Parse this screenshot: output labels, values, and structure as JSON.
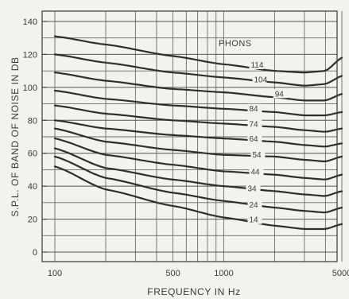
{
  "chart_data": {
    "type": "line",
    "title": "",
    "xlabel": "FREQUENCY IN Hz",
    "ylabel": "S.P.L. OF BAND OF NOISE IN DB",
    "x_scale": "log",
    "xlim": [
      100,
      5000
    ],
    "ylim": [
      0,
      140
    ],
    "grid": true,
    "x_tick_labels": [
      "100",
      "500",
      "1000",
      "5000"
    ],
    "y_tick_labels": [
      "0",
      "20",
      "40",
      "60",
      "80",
      "100",
      "120",
      "140"
    ],
    "legend_title": "PHONS",
    "x": [
      100,
      200,
      500,
      1000,
      2000,
      3000,
      4000,
      5000
    ],
    "series": [
      {
        "name": "114",
        "values": [
          131,
          126,
          119,
          114,
          110,
          109,
          110,
          118
        ]
      },
      {
        "name": "104",
        "values": [
          120,
          115,
          109,
          106,
          103,
          101,
          102,
          107
        ]
      },
      {
        "name": "94",
        "values": [
          109,
          104,
          99,
          97,
          94,
          92,
          92,
          96
        ]
      },
      {
        "name": "84",
        "values": [
          98,
          93,
          89,
          87,
          85,
          83,
          83,
          85
        ]
      },
      {
        "name": "74",
        "values": [
          89,
          84,
          80,
          78,
          76,
          74,
          73,
          75
        ]
      },
      {
        "name": "64",
        "values": [
          80,
          75,
          71,
          69,
          67,
          65,
          64,
          66
        ]
      },
      {
        "name": "54",
        "values": [
          75,
          67,
          62,
          59,
          58,
          56,
          55,
          58
        ]
      },
      {
        "name": "44",
        "values": [
          69,
          59,
          53,
          49,
          47,
          45,
          44,
          47
        ]
      },
      {
        "name": "34",
        "values": [
          63,
          51,
          44,
          40,
          37,
          35,
          34,
          37
        ]
      },
      {
        "name": "24",
        "values": [
          58,
          45,
          36,
          31,
          27,
          25,
          24,
          27
        ]
      },
      {
        "name": "14",
        "values": [
          52,
          38,
          28,
          21,
          16,
          14,
          14,
          17
        ]
      }
    ],
    "curve_labels": [
      {
        "text": "114",
        "x": 1000,
        "y": 113
      },
      {
        "text": "104",
        "x": 1000,
        "y": 104
      },
      {
        "text": "94",
        "x": 1650,
        "y": 94
      },
      {
        "text": "84",
        "x": 1000,
        "y": 86
      },
      {
        "text": "74",
        "x": 1000,
        "y": 76
      },
      {
        "text": "64",
        "x": 1000,
        "y": 67
      },
      {
        "text": "54",
        "x": 1000,
        "y": 57
      },
      {
        "text": "44",
        "x": 1000,
        "y": 47
      },
      {
        "text": "34",
        "x": 1000,
        "y": 37
      },
      {
        "text": "24",
        "x": 1000,
        "y": 27
      },
      {
        "text": "14",
        "x": 1000,
        "y": 18
      }
    ]
  }
}
